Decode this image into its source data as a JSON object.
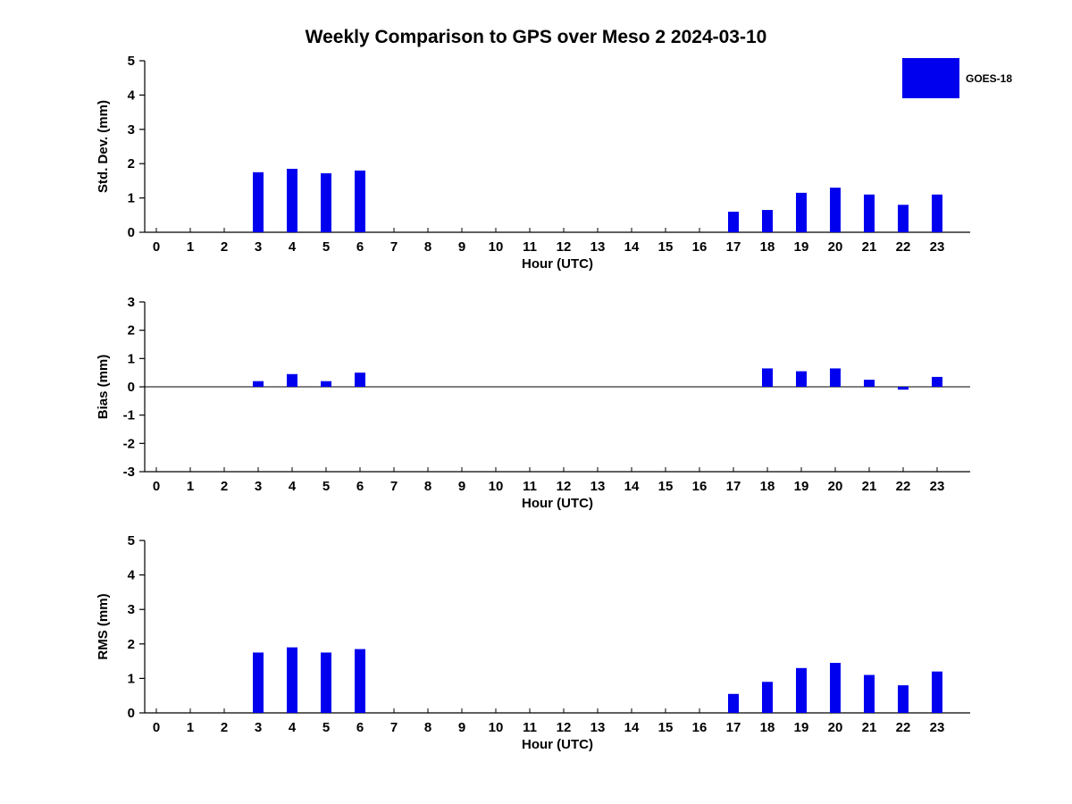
{
  "title": "Weekly Comparison to GPS over Meso 2 2024-03-10",
  "legend": {
    "label": "GOES-18",
    "color": "#0000ee",
    "position": "top-right"
  },
  "chart_data": [
    {
      "type": "bar",
      "name": "std-dev",
      "title": "",
      "ylabel": "Std. Dev. (mm)",
      "xlabel": "Hour (UTC)",
      "ylim": [
        0,
        5
      ],
      "yticks": [
        0,
        1,
        2,
        3,
        4,
        5
      ],
      "grid": false,
      "categories": [
        "0",
        "1",
        "2",
        "3",
        "4",
        "5",
        "6",
        "7",
        "8",
        "9",
        "10",
        "11",
        "12",
        "13",
        "14",
        "15",
        "16",
        "17",
        "18",
        "19",
        "20",
        "21",
        "22",
        "23"
      ],
      "series": [
        {
          "name": "GOES-18",
          "values": [
            0,
            0,
            0,
            1.75,
            1.85,
            1.72,
            1.8,
            0,
            0,
            0,
            0,
            0,
            0,
            0,
            0,
            0,
            0,
            0.6,
            0.65,
            1.15,
            1.3,
            1.1,
            0.8,
            1.1
          ]
        }
      ]
    },
    {
      "type": "bar",
      "name": "bias",
      "title": "",
      "ylabel": "Bias (mm)",
      "xlabel": "Hour (UTC)",
      "ylim": [
        -3,
        3
      ],
      "yticks": [
        -3,
        -2,
        -1,
        0,
        1,
        2,
        3
      ],
      "grid": false,
      "categories": [
        "0",
        "1",
        "2",
        "3",
        "4",
        "5",
        "6",
        "7",
        "8",
        "9",
        "10",
        "11",
        "12",
        "13",
        "14",
        "15",
        "16",
        "17",
        "18",
        "19",
        "20",
        "21",
        "22",
        "23"
      ],
      "series": [
        {
          "name": "GOES-18",
          "values": [
            0,
            0,
            0,
            0.2,
            0.45,
            0.2,
            0.5,
            0,
            0,
            0,
            0,
            0,
            0,
            0,
            0,
            0,
            0,
            0,
            0.65,
            0.55,
            0.65,
            0.25,
            -0.1,
            0.35
          ]
        }
      ]
    },
    {
      "type": "bar",
      "name": "rms",
      "title": "",
      "ylabel": "RMS (mm)",
      "xlabel": "Hour (UTC)",
      "ylim": [
        0,
        5
      ],
      "yticks": [
        0,
        1,
        2,
        3,
        4,
        5
      ],
      "grid": false,
      "categories": [
        "0",
        "1",
        "2",
        "3",
        "4",
        "5",
        "6",
        "7",
        "8",
        "9",
        "10",
        "11",
        "12",
        "13",
        "14",
        "15",
        "16",
        "17",
        "18",
        "19",
        "20",
        "21",
        "22",
        "23"
      ],
      "series": [
        {
          "name": "GOES-18",
          "values": [
            0,
            0,
            0,
            1.75,
            1.9,
            1.75,
            1.85,
            0,
            0,
            0,
            0,
            0,
            0,
            0,
            0,
            0,
            0,
            0.55,
            0.9,
            1.3,
            1.45,
            1.1,
            0.8,
            1.2
          ]
        }
      ]
    }
  ]
}
